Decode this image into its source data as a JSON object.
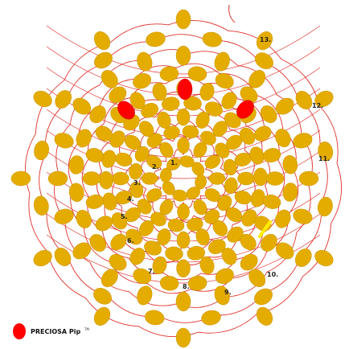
{
  "pattern": {
    "bead_color": "#e5ac00",
    "bead_stroke": "#c99400",
    "accent_color": "#ff0000",
    "thread_color": "#e0322a",
    "highlight_color": "#ffee00",
    "bead_shape": "oval",
    "accent_bead_count": 3
  },
  "labels": [
    "1.",
    "2.",
    "3.",
    "4.",
    "5.",
    "6.",
    "7.",
    "8.",
    "9.",
    "10.",
    "11.",
    "12.",
    "13."
  ],
  "legend": {
    "brand": "PRECIOSA Pip",
    "trademark": "TM",
    "swatch_color": "#ff0000"
  }
}
